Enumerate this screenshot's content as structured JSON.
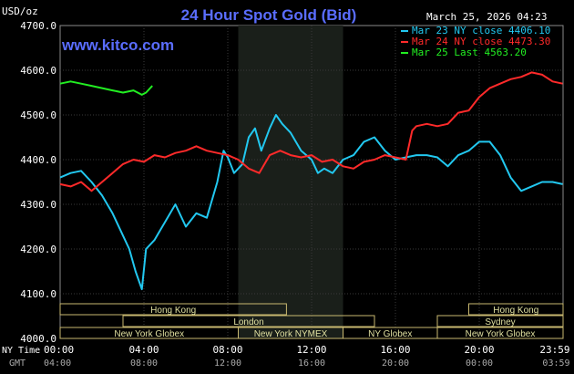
{
  "header": {
    "title": "24 Hour Spot Gold (Bid)",
    "date": "March 25, 2026 04:23",
    "watermark": "www.kitco.com",
    "unit": "USD/oz"
  },
  "legend": [
    {
      "label": "Mar 23 NY close 4406.10",
      "color": "#22c8f0"
    },
    {
      "label": "Mar 24 NY close 4473.30",
      "color": "#ff2a2a"
    },
    {
      "label": "Mar 25 Last 4563.20",
      "color": "#22ee22"
    }
  ],
  "axis_labels": {
    "ny_time": "NY Time",
    "gmt": "GMT"
  },
  "chart_data": {
    "type": "line",
    "title": "24 Hour Spot Gold (Bid)",
    "ylabel": "USD/oz",
    "ylim": [
      4000,
      4700
    ],
    "xlim_hours": [
      0,
      24
    ],
    "y_ticks": [
      "4700.0",
      "4600.0",
      "4500.0",
      "4400.0",
      "4300.0",
      "4200.0",
      "4100.0",
      "4000.0"
    ],
    "x_ticks_ny": [
      "00:00",
      "04:00",
      "08:00",
      "12:00",
      "16:00",
      "20:00",
      "23:59"
    ],
    "x_ticks_gmt": [
      "04:00",
      "08:00",
      "12:00",
      "16:00",
      "20:00",
      "00:00",
      "03:59"
    ],
    "grid": true,
    "series": [
      {
        "name": "Mar 23 NY close 4406.10",
        "color": "#22c8f0",
        "x": [
          0,
          0.5,
          1.0,
          1.5,
          2.0,
          2.5,
          3.0,
          3.3,
          3.6,
          3.9,
          4.1,
          4.5,
          5.0,
          5.5,
          6.0,
          6.5,
          7.0,
          7.5,
          7.8,
          8.0,
          8.3,
          8.7,
          9.0,
          9.3,
          9.6,
          10.0,
          10.3,
          10.6,
          11.0,
          11.5,
          12.0,
          12.3,
          12.6,
          13.0,
          13.5,
          14.0,
          14.5,
          15.0,
          15.5,
          16.0,
          16.5,
          17.0,
          17.5,
          18.0,
          18.5,
          19.0,
          19.5,
          20.0,
          20.5,
          21.0,
          21.5,
          22.0,
          22.5,
          23.0,
          23.5,
          23.98
        ],
        "y": [
          4360,
          4370,
          4375,
          4350,
          4320,
          4280,
          4230,
          4200,
          4150,
          4110,
          4200,
          4220,
          4260,
          4300,
          4250,
          4280,
          4270,
          4350,
          4420,
          4405,
          4370,
          4390,
          4450,
          4470,
          4420,
          4470,
          4500,
          4480,
          4460,
          4420,
          4400,
          4370,
          4380,
          4370,
          4400,
          4410,
          4440,
          4450,
          4420,
          4400,
          4405,
          4410,
          4410,
          4405,
          4385,
          4410,
          4420,
          4440,
          4440,
          4410,
          4360,
          4330,
          4340,
          4350,
          4350,
          4345
        ]
      },
      {
        "name": "Mar 24 NY close 4473.30",
        "color": "#ff2a2a",
        "x": [
          0,
          0.5,
          1.0,
          1.5,
          2.0,
          2.5,
          3.0,
          3.5,
          4.0,
          4.5,
          5.0,
          5.5,
          6.0,
          6.5,
          7.0,
          7.5,
          8.0,
          8.5,
          9.0,
          9.5,
          10.0,
          10.5,
          11.0,
          11.5,
          12.0,
          12.5,
          13.0,
          13.5,
          14.0,
          14.5,
          15.0,
          15.5,
          16.0,
          16.5,
          16.8,
          17.0,
          17.5,
          18.0,
          18.5,
          19.0,
          19.5,
          20.0,
          20.5,
          21.0,
          21.5,
          22.0,
          22.5,
          23.0,
          23.5,
          23.98
        ],
        "y": [
          4345,
          4340,
          4350,
          4330,
          4350,
          4370,
          4390,
          4400,
          4395,
          4410,
          4405,
          4415,
          4420,
          4430,
          4420,
          4415,
          4410,
          4400,
          4380,
          4370,
          4410,
          4420,
          4410,
          4405,
          4410,
          4395,
          4400,
          4385,
          4380,
          4395,
          4400,
          4410,
          4405,
          4400,
          4465,
          4475,
          4480,
          4475,
          4480,
          4505,
          4510,
          4540,
          4560,
          4570,
          4580,
          4585,
          4595,
          4590,
          4575,
          4570
        ]
      },
      {
        "name": "Mar 25 Last 4563.20",
        "color": "#22ee22",
        "x": [
          0,
          0.5,
          1.0,
          1.5,
          2.0,
          2.5,
          3.0,
          3.5,
          3.9,
          4.1,
          4.4
        ],
        "y": [
          4570,
          4575,
          4570,
          4565,
          4560,
          4555,
          4550,
          4555,
          4545,
          4550,
          4565
        ]
      }
    ],
    "sessions": [
      {
        "name": "Hong Kong",
        "row": 0,
        "ranges": [
          [
            0,
            10.8
          ],
          [
            19.5,
            24
          ]
        ]
      },
      {
        "name": "London",
        "row": 1,
        "ranges": [
          [
            3,
            15
          ]
        ]
      },
      {
        "name": "New York Globex",
        "row": 2,
        "ranges": [
          [
            0,
            8.5
          ],
          [
            18,
            24
          ]
        ]
      },
      {
        "name": "New York NYMEX",
        "row": 2,
        "ranges": [
          [
            8.5,
            13.5
          ]
        ]
      },
      {
        "name": "NY Globex",
        "row": 2,
        "ranges": [
          [
            13.5,
            18
          ]
        ]
      },
      {
        "name": "Sydney",
        "row": 1,
        "ranges": [
          [
            18,
            24
          ]
        ]
      }
    ],
    "highlight_range": [
      8.5,
      13.5
    ]
  }
}
